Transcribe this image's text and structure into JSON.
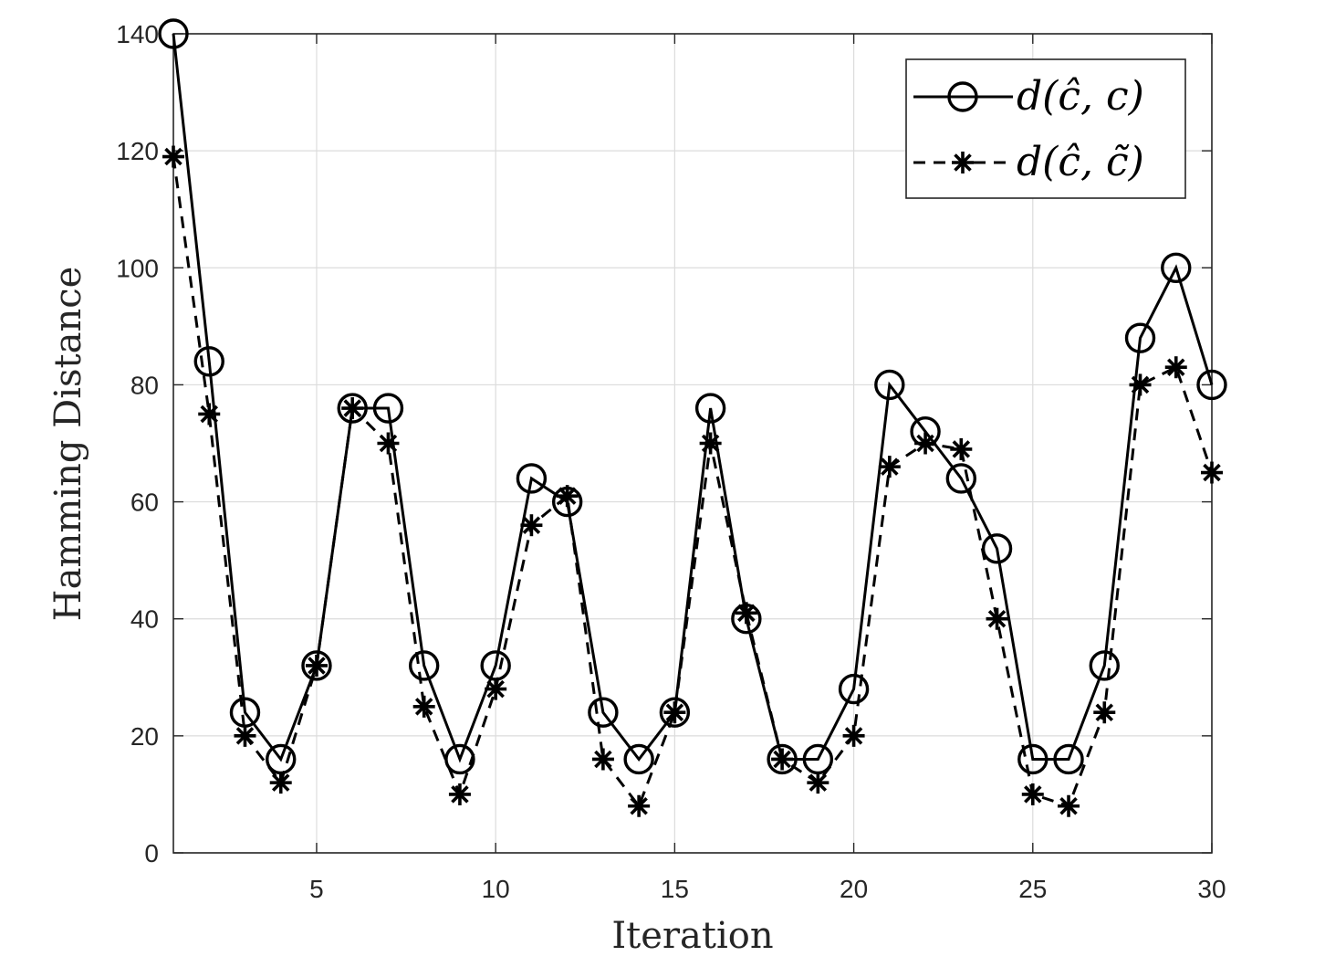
{
  "chart_data": {
    "type": "line",
    "title": "",
    "xlabel": "Iteration",
    "ylabel": "Hamming Distance",
    "xlim": [
      1,
      30
    ],
    "ylim": [
      0,
      140
    ],
    "xticks": [
      5,
      10,
      15,
      20,
      25,
      30
    ],
    "yticks": [
      0,
      20,
      40,
      60,
      80,
      100,
      120,
      140
    ],
    "grid": true,
    "legend_position": "top-right",
    "x": [
      1,
      2,
      3,
      4,
      5,
      6,
      7,
      8,
      9,
      10,
      11,
      12,
      13,
      14,
      15,
      16,
      17,
      18,
      19,
      20,
      21,
      22,
      23,
      24,
      25,
      26,
      27,
      28,
      29,
      30
    ],
    "series": [
      {
        "name": "d(ĉ, c)",
        "style": "solid",
        "marker": "circle",
        "values": [
          140,
          84,
          24,
          16,
          32,
          76,
          76,
          32,
          16,
          32,
          64,
          60,
          24,
          16,
          24,
          76,
          40,
          16,
          16,
          28,
          80,
          72,
          64,
          52,
          16,
          16,
          32,
          88,
          100,
          80
        ]
      },
      {
        "name": "d(ĉ, c̃)",
        "style": "dashed",
        "marker": "asterisk",
        "values": [
          119,
          75,
          20,
          12,
          32,
          76,
          70,
          25,
          10,
          28,
          56,
          61,
          16,
          8,
          24,
          70,
          41,
          16,
          12,
          20,
          66,
          70,
          69,
          40,
          10,
          8,
          24,
          80,
          83,
          65
        ]
      }
    ],
    "legend_labels": [
      "d(ĉ, c)",
      "d(ĉ, c̃)"
    ]
  }
}
